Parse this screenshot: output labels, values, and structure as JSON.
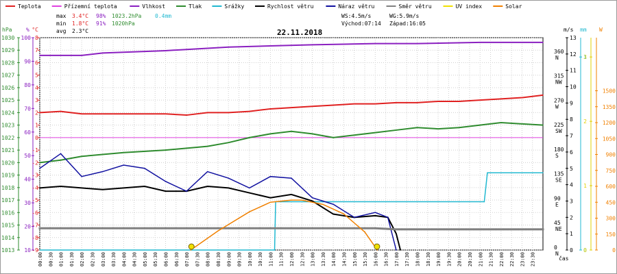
{
  "chart_data": {
    "type": "line",
    "title": "22.11.2018",
    "legend": {
      "placement": "top",
      "items": [
        {
          "label": "Teplota",
          "color": "#e02020"
        },
        {
          "label": "Přízemní teplota",
          "color": "#e040e0"
        },
        {
          "label": "Vlhkost",
          "color": "#8a1fc0"
        },
        {
          "label": "Tlak",
          "color": "#2e8b2e"
        },
        {
          "label": "Srážky",
          "color": "#20b8d0"
        },
        {
          "label": "Rychlost větru",
          "color": "#000000"
        },
        {
          "label": "Náraz větru",
          "color": "#1010a0"
        },
        {
          "label": "Směr větru",
          "color": "#808080"
        },
        {
          "label": "UV index",
          "color": "#f0e000"
        },
        {
          "label": "Solar",
          "color": "#f08000"
        }
      ]
    },
    "stats": {
      "max": {
        "label": "max",
        "temp": "3.4°C",
        "hum": "98%",
        "press": "1023.2hPa",
        "rain": "0.4mm"
      },
      "min": {
        "label": "min",
        "temp": "1.8°C",
        "hum": "91%",
        "press": "1020hPa"
      },
      "avg": {
        "label": "avg",
        "temp": "2.3°C"
      }
    },
    "info": {
      "ws": "WS:4.5m/s",
      "wg": "WG:5.9m/s",
      "sunrise": "Východ:07:14",
      "sunset": "Západ:16:05"
    },
    "axes": {
      "hpa": {
        "unit": "hPa",
        "min": 1013,
        "max": 1030,
        "ticks": [
          "1013",
          "1014",
          "1015",
          "1016",
          "1017",
          "1018",
          "1019",
          "1020",
          "1021",
          "1022",
          "1023",
          "1024",
          "1025",
          "1026",
          "1027",
          "1028",
          "1029",
          "1030"
        ]
      },
      "pct": {
        "unit": "%",
        "min": 10,
        "max": 100,
        "ticks": [
          "10",
          "20",
          "30",
          "40",
          "50",
          "60",
          "70",
          "80",
          "90",
          "100"
        ]
      },
      "temp": {
        "unit": "°C",
        "min": -9,
        "max": 8,
        "ticks": [
          "-9",
          "-8",
          "-7",
          "-6",
          "-5",
          "-4",
          "-3",
          "-2",
          "-1",
          "0",
          "1",
          "2",
          "3",
          "4",
          "5",
          "6",
          "7",
          "8"
        ]
      },
      "dir": {
        "ticks": [
          {
            "v": 0,
            "deg": "0",
            "lbl": "N"
          },
          {
            "v": 45,
            "deg": "45",
            "lbl": "NE"
          },
          {
            "v": 90,
            "deg": "90",
            "lbl": "E"
          },
          {
            "v": 135,
            "deg": "135",
            "lbl": "SE"
          },
          {
            "v": 180,
            "deg": "180",
            "lbl": "S"
          },
          {
            "v": 225,
            "deg": "225",
            "lbl": "SW"
          },
          {
            "v": 270,
            "deg": "270",
            "lbl": "W"
          },
          {
            "v": 315,
            "deg": "315",
            "lbl": "NW"
          },
          {
            "v": 360,
            "deg": "360",
            "lbl": "N"
          }
        ]
      },
      "ms": {
        "unit": "m/s",
        "min": 0,
        "max": 13,
        "ticks": [
          "0",
          "1",
          "2",
          "3",
          "4",
          "5",
          "6",
          "7",
          "8",
          "9",
          "10",
          "11",
          "12",
          "13"
        ]
      },
      "mm": {
        "unit": "mm",
        "ticks": [
          "0",
          "1"
        ]
      },
      "uv": {
        "ticks": [
          "0",
          "1",
          "2",
          "3"
        ]
      },
      "w": {
        "unit": "W",
        "ticks": [
          "0",
          "150",
          "300",
          "450",
          "600",
          "750",
          "900",
          "1050",
          "1200",
          "1350",
          "1500"
        ]
      },
      "x": {
        "label": "čas",
        "ticks": [
          "00:00",
          "00:30",
          "01:00",
          "01:30",
          "02:00",
          "02:30",
          "03:00",
          "03:30",
          "04:00",
          "04:30",
          "05:00",
          "05:30",
          "06:00",
          "06:30",
          "07:00",
          "07:30",
          "08:00",
          "08:30",
          "09:00",
          "09:30",
          "10:00",
          "10:30",
          "11:00",
          "11:30",
          "12:00",
          "12:30",
          "13:00",
          "13:30",
          "14:00",
          "14:30",
          "15:00",
          "15:30",
          "16:00",
          "16:30",
          "17:00",
          "17:30",
          "18:00",
          "18:30",
          "19:00",
          "19:30",
          "20:00",
          "20:30",
          "21:00",
          "21:30",
          "22:00",
          "22:30",
          "23:00",
          "23:30"
        ]
      }
    },
    "series": [
      {
        "name": "Teplota",
        "unit": "°C",
        "x": [
          0,
          1,
          2,
          4,
          6,
          7,
          8,
          9,
          10,
          11,
          12,
          13,
          14,
          15,
          16,
          17,
          18,
          19,
          20,
          21,
          22,
          23,
          24
        ],
        "y": [
          2.0,
          2.1,
          1.9,
          1.9,
          1.9,
          1.8,
          2.0,
          2.0,
          2.1,
          2.3,
          2.4,
          2.5,
          2.6,
          2.7,
          2.7,
          2.8,
          2.8,
          2.9,
          2.9,
          3.0,
          3.1,
          3.2,
          3.4
        ]
      },
      {
        "name": "Vlhkost",
        "unit": "%",
        "x": [
          0,
          2,
          3,
          6,
          7,
          9,
          11,
          13,
          16,
          18,
          21,
          24
        ],
        "y": [
          92.5,
          92.5,
          93.5,
          94.5,
          95,
          96,
          96.5,
          97,
          97.5,
          97.5,
          98,
          98
        ]
      },
      {
        "name": "Tlak",
        "unit": "hPa",
        "x": [
          0,
          1,
          2,
          4,
          6,
          8,
          9,
          10,
          11,
          12,
          13,
          14,
          15,
          16,
          17,
          18,
          19,
          20,
          21,
          22,
          23,
          24
        ],
        "y": [
          1020.0,
          1020.2,
          1020.5,
          1020.8,
          1021.0,
          1021.3,
          1021.6,
          1022.0,
          1022.3,
          1022.5,
          1022.3,
          1022.0,
          1022.2,
          1022.4,
          1022.6,
          1022.8,
          1022.7,
          1022.8,
          1023.0,
          1023.2,
          1023.1,
          1023.0
        ]
      },
      {
        "name": "Srážky",
        "unit": "mm",
        "x": [
          0,
          11.2,
          11.25,
          21.2,
          21.35,
          24
        ],
        "y": [
          0,
          0,
          0.25,
          0.25,
          0.4,
          0.4
        ]
      },
      {
        "name": "Rychlost větru",
        "unit": "m/s",
        "x": [
          0,
          1,
          2,
          3,
          4,
          5,
          6,
          7,
          8,
          9,
          10,
          11,
          12,
          13,
          14,
          15,
          16,
          16.6,
          17,
          17.2
        ],
        "y": [
          3.8,
          3.9,
          3.8,
          3.7,
          3.8,
          3.9,
          3.6,
          3.6,
          3.9,
          3.8,
          3.5,
          3.2,
          3.4,
          3.0,
          2.2,
          2.0,
          2.1,
          2.0,
          1.0,
          0
        ]
      },
      {
        "name": "Náraz větru",
        "unit": "m/s",
        "x": [
          0,
          1,
          2,
          3,
          4,
          5,
          6,
          7,
          8,
          9,
          10,
          11,
          12,
          13,
          14,
          15,
          16,
          16.6,
          17
        ],
        "y": [
          5.0,
          5.9,
          4.5,
          4.8,
          5.2,
          5.0,
          4.2,
          3.6,
          4.8,
          4.4,
          3.8,
          4.5,
          4.4,
          3.2,
          2.8,
          2.0,
          2.3,
          2.0,
          0
        ]
      },
      {
        "name": "Směr větru",
        "unit": "deg",
        "x": [
          0,
          2,
          4,
          6,
          8,
          10,
          12,
          14,
          16,
          17,
          24
        ],
        "y": [
          40,
          40,
          40,
          40,
          40,
          40,
          40,
          40,
          40,
          38,
          38
        ]
      },
      {
        "name": "Solar",
        "unit": "W",
        "x": [
          7.2,
          8.5,
          10,
          11,
          12,
          12.5,
          13.5,
          14.5,
          15.5,
          16.1
        ],
        "y": [
          0,
          180,
          360,
          450,
          470,
          470,
          430,
          340,
          170,
          0
        ]
      }
    ]
  }
}
